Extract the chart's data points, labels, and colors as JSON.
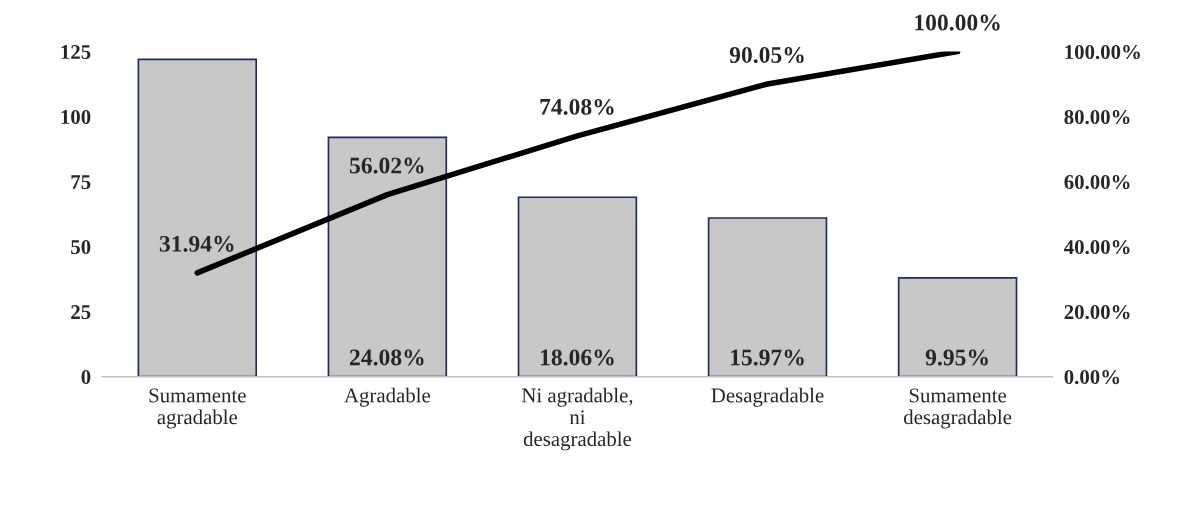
{
  "chart_data": {
    "type": "bar",
    "categories": [
      "Sumamente\nagradable",
      "Agradable",
      "Ni agradable,\nni\ndesagradable",
      "Desagradable",
      "Sumamente\ndesagradable"
    ],
    "series": [
      {
        "color": "#c8c8c8",
        "values": [
          122,
          92,
          69,
          61,
          38
        ]
      },
      {
        "type": "line",
        "axis": "y2",
        "color": "#000000",
        "values": [
          31.94,
          56.02,
          74.08,
          90.05,
          100.0
        ],
        "value_labels": [
          "31.94%",
          "56.02%",
          "74.08%",
          "90.05%",
          "100.00%"
        ]
      }
    ],
    "ylim": [
      0,
      125
    ],
    "yticks": [
      0,
      25,
      50,
      75,
      100,
      125
    ],
    "y2lim": [
      0,
      100
    ],
    "y2ticks": [
      {
        "value": 0,
        "label": "0.00%"
      },
      {
        "value": 20,
        "label": "20.00%"
      },
      {
        "value": 40,
        "label": "40.00%"
      },
      {
        "value": 60,
        "label": "60.00%"
      },
      {
        "value": 80,
        "label": "80.00%"
      },
      {
        "value": 100,
        "label": "100.00%"
      }
    ],
    "annotations": [
      {
        "text": "24.08%",
        "x": "Agradable",
        "y": 0
      },
      {
        "text": "18.06%",
        "x": "Ni agradable,\nni\ndesagradable",
        "y": 0
      },
      {
        "text": "15.97%",
        "x": "Desagradable",
        "y": 0
      },
      {
        "text": "9.95%",
        "x": "Sumamente\ndesagradable",
        "y": 0
      }
    ],
    "grid": false,
    "legend": false
  }
}
